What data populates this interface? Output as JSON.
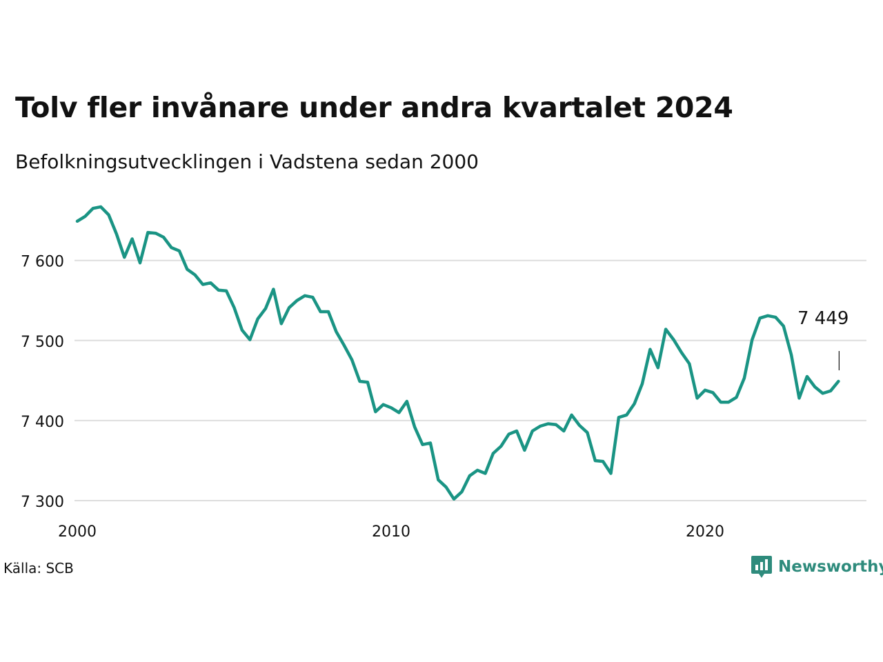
{
  "title": "Tolv fler invånare under andra kvartalet 2024",
  "subtitle": "Befolkningsutvecklingen i Vadstena sedan 2000",
  "source": "Källa: SCB",
  "brand": {
    "name": "Newsworthy",
    "icon": "newsworthy-logo-icon",
    "color": "#2e8b7c"
  },
  "chart_data": {
    "type": "line",
    "title": "Tolv fler invånare under andra kvartalet 2024",
    "subtitle": "Befolkningsutvecklingen i Vadstena sedan 2000",
    "xlabel": "",
    "ylabel": "",
    "x_ticks": [
      "2000",
      "2010",
      "2020"
    ],
    "y_ticks": [
      "7 300",
      "7 400",
      "7 500",
      "7 600"
    ],
    "ylim": [
      7290,
      7690
    ],
    "xlim": [
      2000.0,
      2024.75
    ],
    "grid": "horizontal",
    "legend": "none",
    "line_color": "#1a9484",
    "series": [
      {
        "x": [
          2000.0,
          2000.25,
          2000.5,
          2000.75,
          2001.0,
          2001.25,
          2001.5,
          2001.75,
          2002.0,
          2002.25,
          2002.5,
          2002.75,
          2003.0,
          2003.25,
          2003.5,
          2003.75,
          2004.0,
          2004.25,
          2004.5,
          2004.75,
          2005.0,
          2005.25,
          2005.5,
          2005.75,
          2006.0,
          2006.25,
          2006.5,
          2006.75,
          2007.0,
          2007.25,
          2007.5,
          2007.75,
          2008.0,
          2008.25,
          2008.5,
          2008.75,
          2009.0,
          2009.25,
          2009.5,
          2009.75,
          2010.0,
          2010.25,
          2010.5,
          2010.75,
          2011.0,
          2011.25,
          2011.5,
          2011.75,
          2012.0,
          2012.25,
          2012.5,
          2012.75,
          2013.0,
          2013.25,
          2013.5,
          2013.75,
          2014.0,
          2014.25,
          2014.5,
          2014.75,
          2015.0,
          2015.25,
          2015.5,
          2015.75,
          2016.0,
          2016.25,
          2016.5,
          2016.75,
          2017.0,
          2017.25,
          2017.5,
          2017.75,
          2018.0,
          2018.25,
          2018.5,
          2018.75,
          2019.0,
          2019.25,
          2019.5,
          2019.75,
          2020.0,
          2020.25,
          2020.5,
          2020.75,
          2021.0,
          2021.25,
          2021.5,
          2021.75,
          2022.0,
          2022.25,
          2022.5,
          2022.75,
          2023.0,
          2023.25,
          2023.5,
          2023.75,
          2024.0,
          2024.25
        ],
        "values": [
          7649,
          7655,
          7665,
          7667,
          7657,
          7633,
          7604,
          7627,
          7597,
          7635,
          7634,
          7629,
          7616,
          7612,
          7589,
          7582,
          7570,
          7572,
          7563,
          7562,
          7541,
          7513,
          7501,
          7527,
          7540,
          7564,
          7521,
          7541,
          7550,
          7556,
          7554,
          7536,
          7536,
          7511,
          7494,
          7476,
          7449,
          7448,
          7411,
          7420,
          7416,
          7410,
          7424,
          7392,
          7370,
          7372,
          7326,
          7317,
          7302,
          7311,
          7331,
          7338,
          7334,
          7359,
          7368,
          7383,
          7387,
          7363,
          7387,
          7393,
          7396,
          7395,
          7387,
          7407,
          7394,
          7385,
          7350,
          7349,
          7334,
          7404,
          7407,
          7421,
          7446,
          7489,
          7466,
          7514,
          7501,
          7485,
          7471,
          7428,
          7438,
          7435,
          7423,
          7423,
          7429,
          7453,
          7501,
          7528,
          7531,
          7529,
          7518,
          7482,
          7428,
          7455,
          7442,
          7434,
          7437,
          7449
        ]
      }
    ],
    "annotation": {
      "text": "7 449",
      "x": 2024.25,
      "y": 7449
    }
  }
}
